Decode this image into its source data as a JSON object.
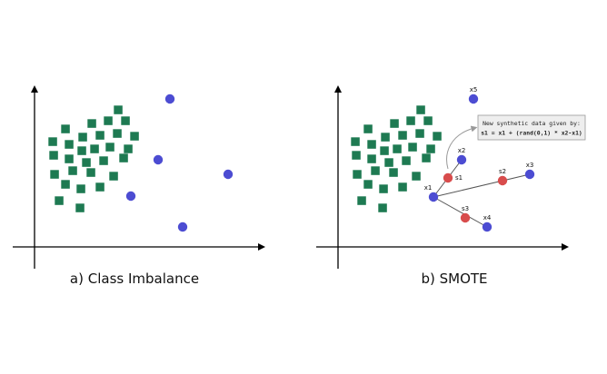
{
  "colors": {
    "majority": "#1e7a52",
    "minority": "#4c4cd2",
    "synthetic": "#d84c4c",
    "axis": "#000000",
    "callout_fill": "#eeeeee",
    "callout_stroke": "#9a9a9a",
    "connector": "#999999"
  },
  "panels": [
    {
      "caption": "a) Class Imbalance",
      "majority_icon": "green-square-icon",
      "minority_icon": "blue-circle-icon"
    },
    {
      "caption": "b) SMOTE",
      "points": {
        "x1": "x1",
        "x2": "x2",
        "x3": "x3",
        "x4": "x4",
        "x5": "x5",
        "s1": "s1",
        "s2": "s2",
        "s3": "s3"
      },
      "callout": {
        "line1": "New synthetic data given by:",
        "line2": "s1 = x1 + (rand(0,1) * x2-x1)"
      },
      "synthetic_icon": "red-circle-icon"
    }
  ]
}
